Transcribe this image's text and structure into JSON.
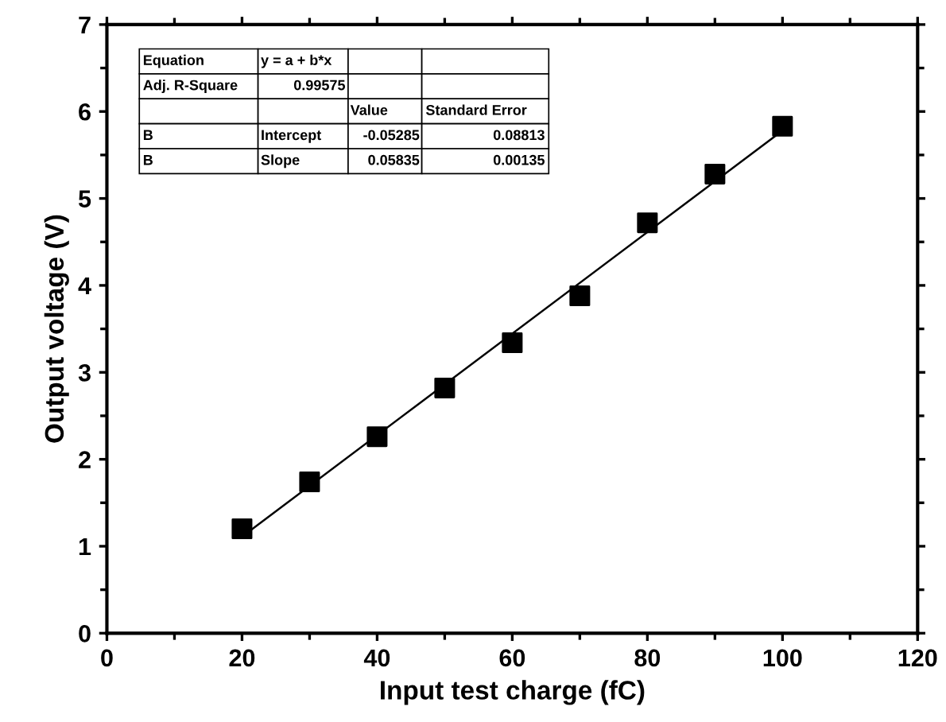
{
  "chart_data": {
    "type": "scatter",
    "xlabel": "Input test charge (fC)",
    "ylabel": "Output voltage (V)",
    "x": [
      20,
      30,
      40,
      50,
      60,
      70,
      80,
      90,
      100
    ],
    "series": [
      {
        "color": "#000000",
        "marker": "square",
        "values": [
          1.2,
          1.74,
          2.26,
          2.82,
          3.34,
          3.88,
          4.72,
          5.28,
          5.83
        ]
      },
      {
        "type": "line",
        "color": "#000000",
        "x": [
          20,
          100
        ],
        "values": [
          1.11,
          5.78
        ],
        "marker": "none",
        "line_style": "solid"
      }
    ],
    "xlim": [
      0,
      120
    ],
    "xticks": [
      0,
      20,
      40,
      60,
      80,
      100,
      120
    ],
    "ylim": [
      0,
      7
    ],
    "yticks": [
      0,
      1,
      2,
      3,
      4,
      5,
      6,
      7
    ],
    "grid": false,
    "legend": false,
    "annotations": [
      "Equation",
      "y = a + b*x",
      "Adj. R-Square",
      "0.99575",
      "Value",
      "Standard Error",
      "B",
      "Intercept",
      "-0.05285",
      "0.08813",
      "B",
      "Slope",
      "0.05835",
      "0.00135"
    ]
  }
}
